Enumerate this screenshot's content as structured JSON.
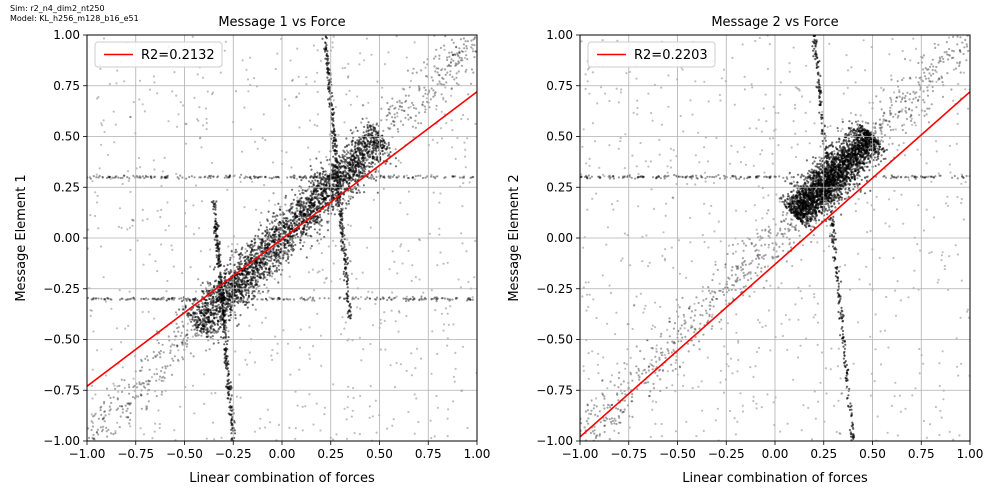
{
  "figure": {
    "sim_label": "Sim: r2_n4_dim2_nt250",
    "model_label": "Model: KL_h256_m128_b16_e51"
  },
  "chart_data": [
    {
      "type": "scatter",
      "title": "Message 1 vs Force",
      "xlabel": "Linear combination of forces",
      "ylabel": "Message Element 1",
      "xlim": [
        -1.0,
        1.0
      ],
      "ylim": [
        -1.0,
        1.0
      ],
      "xticks": [
        "−1.00",
        "−0.75",
        "−0.50",
        "−0.25",
        "0.00",
        "0.25",
        "0.50",
        "0.75",
        "1.00"
      ],
      "yticks": [
        "−1.00",
        "−0.75",
        "−0.50",
        "−0.25",
        "0.00",
        "0.25",
        "0.50",
        "0.75",
        "1.00"
      ],
      "grid": true,
      "legend_position": "top-left",
      "series": [
        {
          "name": "R2=0.2132",
          "kind": "line",
          "color": "#ff0000",
          "x": [
            -1.0,
            1.0
          ],
          "y": [
            -0.73,
            0.72
          ]
        }
      ],
      "scatter_color": "#000000",
      "scatter_structure": {
        "main_cluster": {
          "center": [
            0.05,
            0.05
          ],
          "along_diagonal_extent": [
            -0.45,
            0.5
          ]
        },
        "streaks": [
          {
            "from": [
              0.22,
              1.0
            ],
            "to": [
              0.35,
              -0.4
            ]
          },
          {
            "from": [
              -0.35,
              0.2
            ],
            "to": [
              -0.25,
              -1.0
            ]
          },
          {
            "from": [
              -1.0,
              0.3
            ],
            "to": [
              1.0,
              0.3
            ]
          },
          {
            "from": [
              -1.0,
              -0.3
            ],
            "to": [
              1.0,
              -0.3
            ]
          }
        ]
      }
    },
    {
      "type": "scatter",
      "title": "Message 2 vs Force",
      "xlabel": "Linear combination of forces",
      "ylabel": "Message Element 2",
      "xlim": [
        -1.0,
        1.0
      ],
      "ylim": [
        -1.0,
        1.0
      ],
      "xticks": [
        "−1.00",
        "−0.75",
        "−0.50",
        "−0.25",
        "0.00",
        "0.25",
        "0.50",
        "0.75",
        "1.00"
      ],
      "yticks": [
        "−1.00",
        "−0.75",
        "−0.50",
        "−0.25",
        "0.00",
        "0.25",
        "0.50",
        "0.75",
        "1.00"
      ],
      "grid": true,
      "legend_position": "top-left",
      "series": [
        {
          "name": "R2=0.2203",
          "kind": "line",
          "color": "#ff0000",
          "x": [
            -1.0,
            1.0
          ],
          "y": [
            -0.98,
            0.72
          ]
        }
      ],
      "scatter_color": "#000000",
      "scatter_structure": {
        "main_cluster": {
          "center": [
            0.3,
            0.32
          ],
          "along_diagonal_extent": [
            0.1,
            0.5
          ]
        },
        "streaks": [
          {
            "from": [
              0.2,
              1.0
            ],
            "to": [
              0.4,
              -1.0
            ]
          },
          {
            "from": [
              -1.0,
              0.3
            ],
            "to": [
              1.0,
              0.3
            ]
          }
        ]
      }
    }
  ]
}
